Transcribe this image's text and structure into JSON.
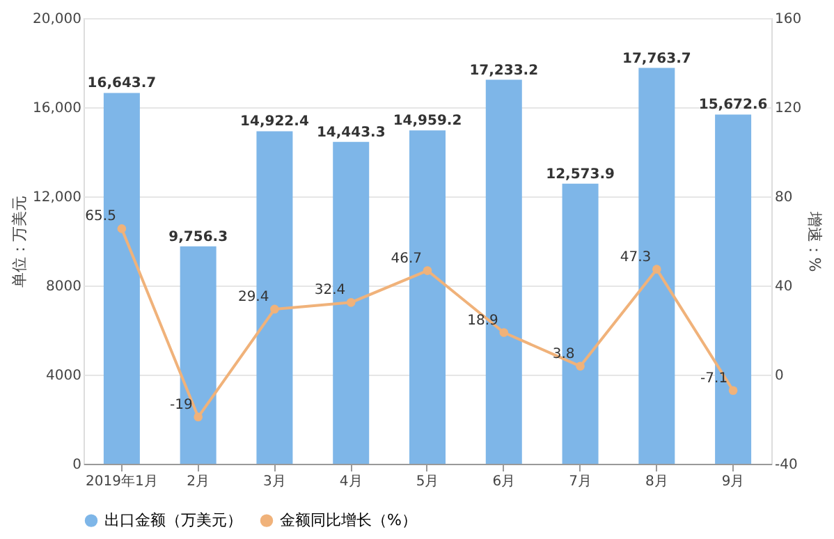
{
  "chart_data": {
    "type": "bar",
    "categories": [
      "2019年1月",
      "2月",
      "3月",
      "4月",
      "5月",
      "6月",
      "7月",
      "8月",
      "9月"
    ],
    "series": [
      {
        "name": "出口金额（万美元）",
        "color": "#7eb6e8",
        "values": [
          16643.7,
          9756.3,
          14922.4,
          14443.3,
          14959.2,
          17233.2,
          12573.9,
          17763.7,
          15672.6
        ],
        "value_labels": [
          "16,643.7",
          "9,756.3",
          "14,922.4",
          "14,443.3",
          "14,959.2",
          "17,233.2",
          "12,573.9",
          "17,763.7",
          "15,672.6"
        ]
      },
      {
        "name": "金额同比增长（%）",
        "type": "line",
        "axis": "y2",
        "color": "#f0b27a",
        "values": [
          65.5,
          -19,
          29.4,
          32.4,
          46.7,
          18.9,
          3.8,
          47.3,
          -7.1
        ],
        "value_labels": [
          "65.5",
          "-19",
          "29.4",
          "32.4",
          "46.7",
          "18.9",
          "3.8",
          "47.3",
          "-7.1"
        ]
      }
    ],
    "ylim": [
      0,
      20000
    ],
    "yticks": [
      0,
      4000,
      8000,
      {
        "value": 12000,
        "label": "12,000"
      },
      {
        "value": 16000,
        "label": "16,000"
      },
      {
        "value": 20000,
        "label": "20,000"
      }
    ],
    "y2lim": [
      -40,
      160
    ],
    "y2ticks": [
      -40,
      0,
      40,
      80,
      120,
      160
    ],
    "ylabel": "单位：万美元",
    "y2label": "增速：%",
    "grid": "y",
    "legend": "bottom",
    "marker": "circle"
  }
}
